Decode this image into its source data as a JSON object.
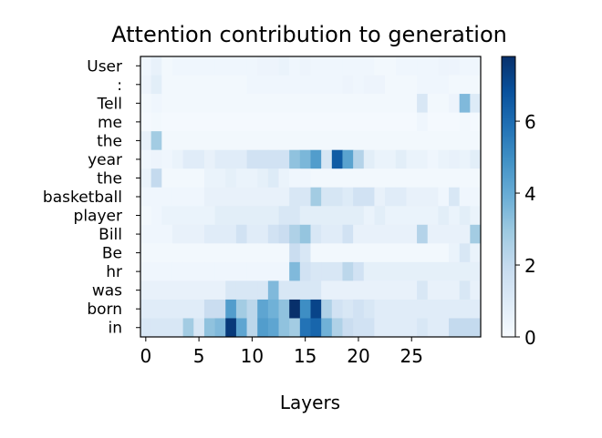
{
  "chart_data": {
    "type": "heatmap",
    "title": "Attention contribution to generation",
    "xlabel": "Layers",
    "ylabel": "",
    "rows": [
      "User",
      ":",
      "Tell",
      "me",
      "the",
      "year",
      "the",
      "basketball",
      "player",
      "Bill",
      "Be",
      "hr",
      "was",
      "born",
      "in"
    ],
    "x_ticks": [
      0,
      5,
      10,
      15,
      20,
      25
    ],
    "n_layers": 32,
    "colorbar": {
      "min": 0,
      "max": 7.8,
      "ticks": [
        0,
        2,
        4,
        6
      ],
      "colormap": "Blues"
    },
    "values": [
      [
        0.3,
        0.6,
        0.2,
        0.3,
        0.3,
        0.3,
        0.3,
        0.3,
        0.3,
        0.3,
        0.3,
        0.4,
        0.4,
        0.5,
        0.3,
        0.4,
        0.3,
        0.3,
        0.3,
        0.3,
        0.3,
        0.3,
        0.2,
        0.2,
        0.3,
        0.3,
        0.3,
        0.3,
        0.4,
        0.4,
        0.3,
        0.3
      ],
      [
        0.4,
        0.8,
        0.2,
        0.2,
        0.2,
        0.2,
        0.2,
        0.2,
        0.2,
        0.2,
        0.3,
        0.3,
        0.3,
        0.3,
        0.3,
        0.3,
        0.3,
        0.3,
        0.3,
        0.4,
        0.3,
        0.4,
        0.4,
        0.2,
        0.2,
        0.2,
        0.3,
        0.3,
        0.3,
        0.2,
        0.2,
        0.2
      ],
      [
        0.2,
        0.3,
        0.2,
        0.2,
        0.2,
        0.2,
        0.2,
        0.2,
        0.2,
        0.2,
        0.2,
        0.2,
        0.2,
        0.2,
        0.2,
        0.2,
        0.2,
        0.2,
        0.2,
        0.2,
        0.2,
        0.2,
        0.2,
        0.2,
        0.2,
        0.2,
        1.2,
        0.2,
        0.2,
        0.4,
        3.5,
        1.0
      ],
      [
        0.1,
        0.2,
        0.1,
        0.1,
        0.1,
        0.1,
        0.1,
        0.1,
        0.1,
        0.1,
        0.1,
        0.1,
        0.1,
        0.1,
        0.1,
        0.1,
        0.1,
        0.1,
        0.1,
        0.1,
        0.1,
        0.1,
        0.1,
        0.1,
        0.1,
        0.1,
        0.3,
        0.1,
        0.1,
        0.1,
        0.2,
        0.1
      ],
      [
        0.6,
        2.8,
        0.2,
        0.2,
        0.2,
        0.2,
        0.2,
        0.2,
        0.2,
        0.2,
        0.2,
        0.2,
        0.2,
        0.2,
        0.2,
        0.2,
        0.2,
        0.2,
        0.2,
        0.2,
        0.2,
        0.2,
        0.2,
        0.2,
        0.2,
        0.2,
        0.2,
        0.2,
        0.2,
        0.2,
        0.2,
        0.2
      ],
      [
        0.3,
        0.4,
        0.3,
        0.5,
        0.9,
        0.9,
        0.6,
        0.9,
        0.9,
        0.9,
        1.5,
        1.5,
        1.5,
        1.5,
        3.2,
        3.6,
        4.5,
        1.3,
        6.5,
        4.3,
        2.4,
        0.8,
        0.5,
        0.5,
        0.8,
        0.5,
        0.5,
        0.3,
        0.5,
        0.6,
        0.5,
        0.8
      ],
      [
        0.5,
        2.0,
        0.2,
        0.2,
        0.2,
        0.2,
        0.5,
        0.5,
        0.7,
        0.5,
        0.5,
        0.7,
        1.0,
        0.5,
        0.3,
        0.3,
        0.2,
        0.2,
        0.2,
        0.2,
        0.2,
        0.2,
        0.2,
        0.2,
        0.2,
        0.2,
        0.2,
        0.2,
        0.2,
        0.2,
        0.2,
        0.2
      ],
      [
        0.3,
        0.3,
        0.3,
        0.3,
        0.3,
        0.3,
        0.6,
        0.6,
        0.6,
        0.6,
        0.6,
        0.6,
        0.6,
        0.6,
        1.2,
        1.2,
        2.8,
        1.3,
        1.3,
        1.0,
        1.5,
        1.5,
        0.6,
        0.9,
        0.9,
        0.6,
        0.6,
        0.6,
        0.3,
        1.2,
        0.3,
        0.3
      ],
      [
        0.2,
        0.3,
        0.5,
        0.5,
        0.5,
        0.5,
        0.5,
        0.8,
        0.8,
        0.8,
        0.8,
        0.8,
        0.8,
        1.2,
        1.2,
        0.8,
        0.8,
        0.8,
        0.8,
        0.8,
        0.8,
        0.5,
        0.8,
        0.5,
        0.5,
        0.5,
        0.5,
        0.5,
        0.8,
        0.5,
        0.8,
        0.5
      ],
      [
        0.3,
        0.3,
        0.3,
        0.6,
        0.6,
        0.6,
        0.9,
        0.9,
        0.9,
        1.5,
        0.9,
        0.9,
        1.5,
        1.8,
        2.5,
        3.1,
        1.2,
        0.9,
        0.9,
        1.5,
        0.6,
        0.6,
        0.6,
        0.6,
        0.6,
        0.6,
        2.4,
        0.6,
        0.6,
        0.6,
        0.6,
        2.8
      ],
      [
        0.2,
        0.2,
        0.2,
        0.2,
        0.2,
        0.2,
        0.2,
        0.2,
        0.2,
        0.2,
        0.2,
        0.2,
        0.2,
        0.2,
        1.8,
        1.2,
        0.2,
        0.2,
        0.2,
        0.2,
        0.2,
        0.2,
        0.2,
        0.2,
        0.2,
        0.2,
        0.2,
        0.2,
        0.2,
        0.5,
        1.2,
        0.5
      ],
      [
        0.3,
        0.3,
        0.3,
        0.3,
        0.3,
        0.3,
        0.3,
        0.3,
        0.3,
        0.3,
        0.3,
        0.3,
        0.3,
        0.3,
        3.5,
        1.5,
        1.2,
        1.2,
        1.2,
        2.2,
        1.5,
        0.7,
        0.7,
        0.7,
        0.7,
        0.7,
        0.7,
        0.7,
        0.7,
        0.7,
        0.7,
        0.7
      ],
      [
        0.6,
        0.6,
        0.6,
        0.6,
        0.6,
        0.6,
        0.6,
        0.6,
        1.2,
        1.2,
        1.2,
        1.2,
        3.5,
        1.2,
        1.2,
        1.2,
        1.2,
        0.6,
        0.6,
        0.6,
        0.6,
        0.6,
        0.6,
        0.6,
        0.6,
        0.6,
        1.2,
        0.6,
        0.6,
        0.6,
        1.2,
        0.6
      ],
      [
        0.9,
        0.9,
        0.9,
        0.9,
        0.9,
        0.9,
        1.8,
        1.8,
        4.5,
        2.8,
        2.2,
        4.2,
        3.8,
        3.2,
        7.8,
        5.0,
        7.2,
        2.5,
        1.5,
        1.2,
        1.5,
        1.2,
        0.9,
        0.9,
        0.9,
        0.9,
        0.9,
        0.9,
        0.9,
        0.9,
        0.9,
        0.9
      ],
      [
        1.2,
        1.2,
        1.2,
        1.2,
        2.8,
        1.2,
        3.2,
        3.5,
        7.5,
        4.2,
        2.2,
        4.5,
        4.2,
        3.2,
        2.8,
        5.8,
        6.2,
        3.8,
        2.5,
        1.8,
        1.5,
        1.5,
        0.9,
        0.9,
        0.9,
        0.9,
        1.2,
        0.9,
        0.9,
        2.0,
        2.0,
        2.0
      ]
    ]
  }
}
